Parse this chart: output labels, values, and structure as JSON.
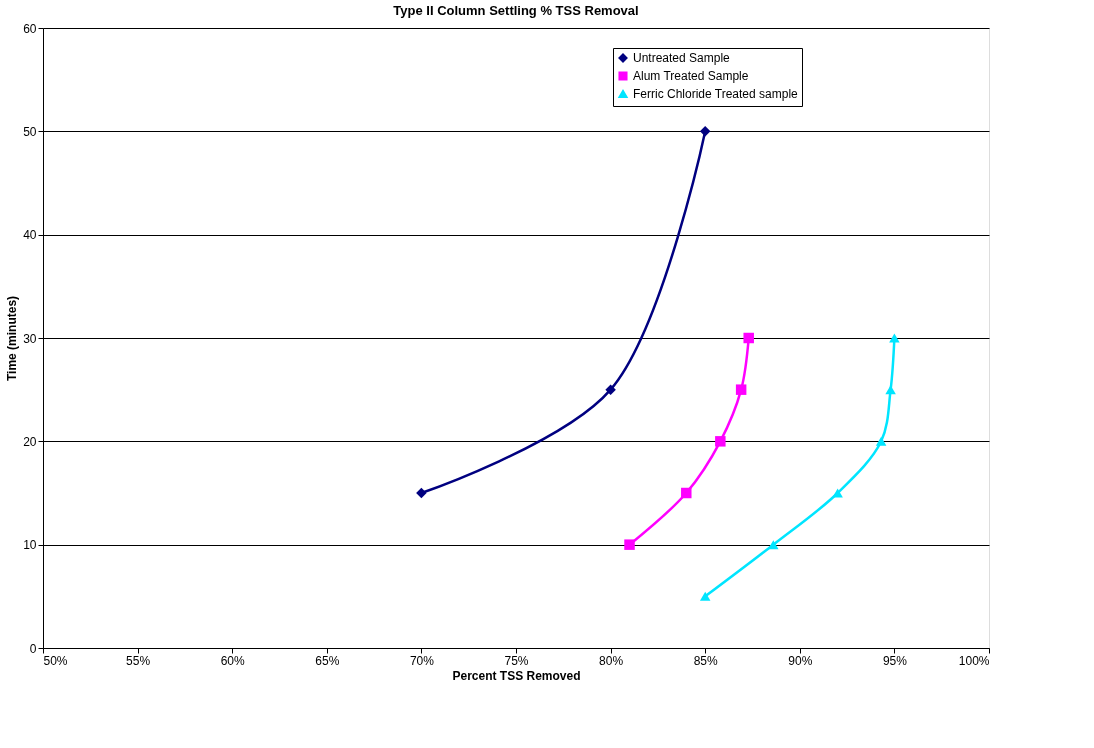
{
  "chart_data": {
    "type": "line",
    "title": "Type II Column Settling % TSS Removal",
    "xlabel": "Percent TSS Removed",
    "ylabel": "Time (minutes)",
    "series": [
      {
        "name": "Untreated Sample",
        "color": "#000080",
        "marker": "diamond",
        "x": [
          70,
          80,
          85
        ],
        "values": [
          15,
          25,
          50
        ]
      },
      {
        "name": "Alum Treated Sample",
        "color": "#ff00ff",
        "marker": "square",
        "x": [
          81,
          84,
          85.8,
          86.9,
          87.3
        ],
        "values": [
          10,
          15,
          20,
          25,
          30
        ]
      },
      {
        "name": "Ferric Chloride Treated sample",
        "color": "#00e5ff",
        "marker": "triangle",
        "x": [
          85,
          88.6,
          92,
          94.3,
          94.8,
          95
        ],
        "values": [
          5,
          10,
          15,
          20,
          25,
          30
        ]
      }
    ],
    "xlim": [
      50,
      100
    ],
    "xticks": [
      {
        "value": 50,
        "label": "50%"
      },
      {
        "value": 55,
        "label": "55%"
      },
      {
        "value": 60,
        "label": "60%"
      },
      {
        "value": 65,
        "label": "65%"
      },
      {
        "value": 70,
        "label": "70%"
      },
      {
        "value": 75,
        "label": "75%"
      },
      {
        "value": 80,
        "label": "80%"
      },
      {
        "value": 85,
        "label": "85%"
      },
      {
        "value": 90,
        "label": "90%"
      },
      {
        "value": 95,
        "label": "95%"
      },
      {
        "value": 100,
        "label": "100%"
      }
    ],
    "ylim": [
      0,
      60
    ],
    "yticks": [
      0,
      10,
      20,
      30,
      40,
      50,
      60
    ],
    "grid": "y",
    "legend": "top right",
    "line_style": "solid"
  }
}
